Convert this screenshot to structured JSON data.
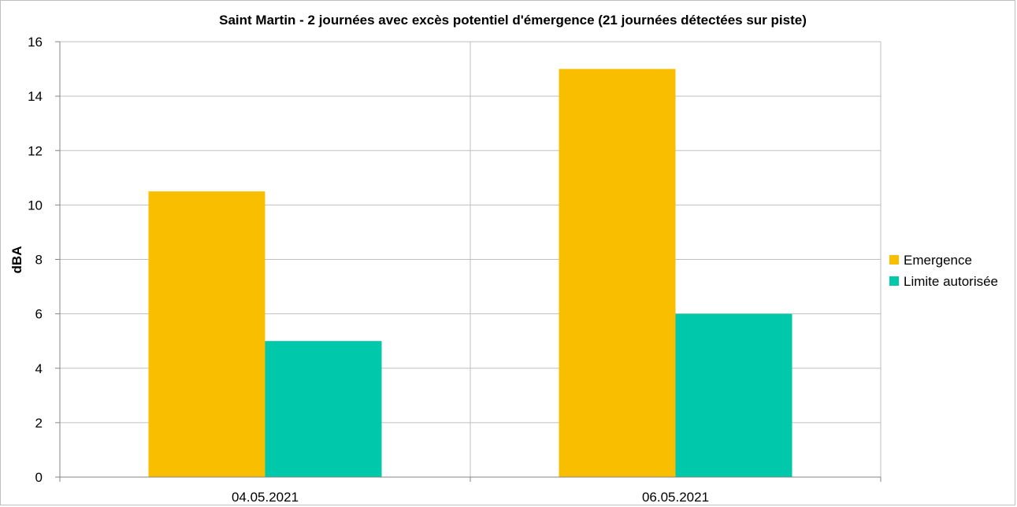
{
  "chart_data": {
    "type": "bar",
    "title": "Saint Martin - 2 journées avec excès potentiel d'émergence (21 journées détectées sur piste)",
    "xlabel": "",
    "ylabel": "dBA",
    "categories": [
      "04.05.2021",
      "06.05.2021"
    ],
    "series": [
      {
        "name": "Emergence",
        "values": [
          10.5,
          15
        ],
        "color": "#F9BE00"
      },
      {
        "name": "Limite autorisée",
        "values": [
          5,
          6
        ],
        "color": "#00C8AA"
      }
    ],
    "ylim": [
      0,
      16
    ],
    "yticks": [
      0,
      2,
      4,
      6,
      8,
      10,
      12,
      14,
      16
    ],
    "grid": true,
    "legend": "right"
  }
}
